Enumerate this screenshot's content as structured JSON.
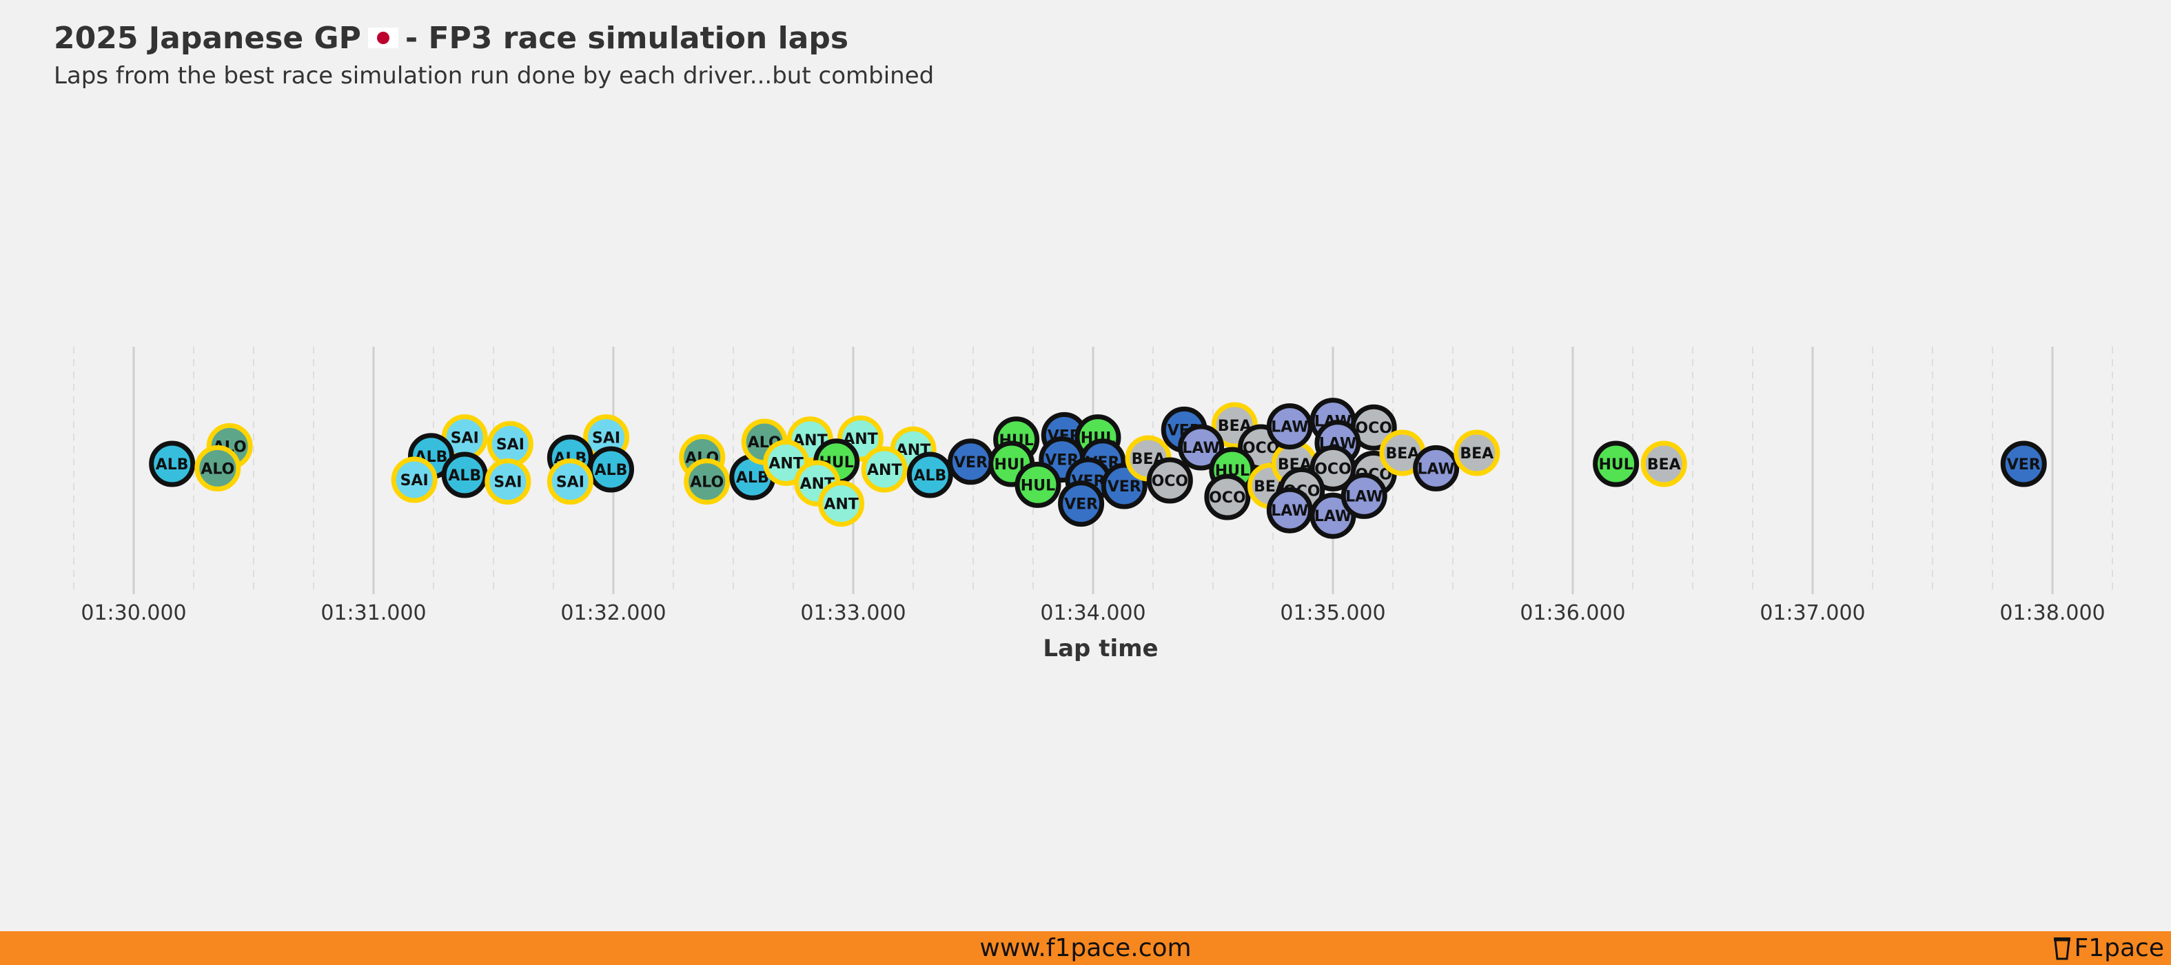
{
  "header": {
    "title_before": "2025 Japanese GP",
    "title_after": "- FP3 race simulation laps",
    "subtitle": "Laps from the best race simulation run done by each driver...but combined"
  },
  "footer": {
    "url": "www.f1pace.com",
    "brand": "F1pace"
  },
  "icons": {
    "flag": "japan-flag-icon",
    "brand_logo": "cup-logo-icon"
  },
  "colors": {
    "background": "#f1f1f1",
    "footer": "#f7871f",
    "tyre_ring_medium": "#ffd400",
    "tyre_ring_hard": "#111111",
    "flag_red": "#bc002d"
  },
  "chart_data": {
    "type": "scatter",
    "subtype": "beeswarm",
    "xlabel": "Lap time",
    "x_unit": "seconds",
    "xlim": [
      89.75,
      98.25
    ],
    "x_ticks": [
      90,
      91,
      92,
      93,
      94,
      95,
      96,
      97,
      98
    ],
    "x_tick_labels": [
      "01:30.000",
      "01:31.000",
      "01:32.000",
      "01:33.000",
      "01:34.000",
      "01:35.000",
      "01:36.000",
      "01:37.000",
      "01:38.000"
    ],
    "grid": "vertical major and minor",
    "driver_colors": {
      "ALB": "#37bedd",
      "ALO": "#5da68a",
      "SAI": "#6fd8ee",
      "ANT": "#8ef0d8",
      "HUL": "#52e252",
      "VER": "#3671c6",
      "BEA": "#b6babd",
      "OCO": "#b6babd",
      "LAW": "#8e99d6"
    },
    "laps": [
      {
        "driver": "ALB",
        "time": 90.16,
        "ring": "hard",
        "offset": 0
      },
      {
        "driver": "ALO",
        "time": 90.4,
        "ring": "medium",
        "offset": -0.8
      },
      {
        "driver": "ALO",
        "time": 90.35,
        "ring": "medium",
        "offset": 0.2
      },
      {
        "driver": "SAI",
        "time": 91.38,
        "ring": "medium",
        "offset": -1.2
      },
      {
        "driver": "SAI",
        "time": 91.57,
        "ring": "medium",
        "offset": -0.9
      },
      {
        "driver": "ALB",
        "time": 91.24,
        "ring": "hard",
        "offset": -0.35
      },
      {
        "driver": "ALB",
        "time": 91.38,
        "ring": "hard",
        "offset": 0.5
      },
      {
        "driver": "SAI",
        "time": 91.17,
        "ring": "medium",
        "offset": 0.72
      },
      {
        "driver": "SAI",
        "time": 91.56,
        "ring": "medium",
        "offset": 0.8
      },
      {
        "driver": "SAI",
        "time": 91.97,
        "ring": "medium",
        "offset": -1.2
      },
      {
        "driver": "ALB",
        "time": 91.82,
        "ring": "hard",
        "offset": -0.28
      },
      {
        "driver": "ALB",
        "time": 91.99,
        "ring": "hard",
        "offset": 0.25
      },
      {
        "driver": "SAI",
        "time": 91.82,
        "ring": "medium",
        "offset": 0.8
      },
      {
        "driver": "ALO",
        "time": 92.37,
        "ring": "medium",
        "offset": -0.3
      },
      {
        "driver": "ALO",
        "time": 92.39,
        "ring": "medium",
        "offset": 0.8
      },
      {
        "driver": "ALB",
        "time": 92.58,
        "ring": "hard",
        "offset": 0.6
      },
      {
        "driver": "ALO",
        "time": 92.63,
        "ring": "medium",
        "offset": -1.0
      },
      {
        "driver": "ANT",
        "time": 92.82,
        "ring": "medium",
        "offset": -1.1
      },
      {
        "driver": "ANT",
        "time": 93.03,
        "ring": "medium",
        "offset": -1.15
      },
      {
        "driver": "ANT",
        "time": 92.72,
        "ring": "medium",
        "offset": -0.05
      },
      {
        "driver": "HUL",
        "time": 92.93,
        "ring": "hard",
        "offset": -0.1
      },
      {
        "driver": "ANT",
        "time": 93.25,
        "ring": "medium",
        "offset": -0.65
      },
      {
        "driver": "ANT",
        "time": 93.13,
        "ring": "medium",
        "offset": 0.25
      },
      {
        "driver": "ANT",
        "time": 92.85,
        "ring": "medium",
        "offset": 0.88
      },
      {
        "driver": "ANT",
        "time": 92.95,
        "ring": "medium",
        "offset": 1.8
      },
      {
        "driver": "ALB",
        "time": 93.32,
        "ring": "hard",
        "offset": 0.5
      },
      {
        "driver": "VER",
        "time": 93.49,
        "ring": "hard",
        "offset": -0.1
      },
      {
        "driver": "HUL",
        "time": 93.68,
        "ring": "hard",
        "offset": -1.1
      },
      {
        "driver": "VER",
        "time": 93.88,
        "ring": "hard",
        "offset": -1.3
      },
      {
        "driver": "HUL",
        "time": 94.02,
        "ring": "hard",
        "offset": -1.2
      },
      {
        "driver": "HUL",
        "time": 93.66,
        "ring": "hard",
        "offset": 0
      },
      {
        "driver": "VER",
        "time": 93.87,
        "ring": "hard",
        "offset": -0.2
      },
      {
        "driver": "VER",
        "time": 94.04,
        "ring": "hard",
        "offset": -0.1
      },
      {
        "driver": "VER",
        "time": 93.98,
        "ring": "hard",
        "offset": 0.75
      },
      {
        "driver": "HUL",
        "time": 93.77,
        "ring": "hard",
        "offset": 0.95
      },
      {
        "driver": "VER",
        "time": 94.13,
        "ring": "hard",
        "offset": 1.0
      },
      {
        "driver": "VER",
        "time": 93.95,
        "ring": "hard",
        "offset": 1.8
      },
      {
        "driver": "BEA",
        "time": 94.23,
        "ring": "medium",
        "offset": -0.25
      },
      {
        "driver": "VER",
        "time": 94.38,
        "ring": "hard",
        "offset": -1.55
      },
      {
        "driver": "BEA",
        "time": 94.59,
        "ring": "medium",
        "offset": -1.75
      },
      {
        "driver": "LAW",
        "time": 94.45,
        "ring": "hard",
        "offset": -0.75
      },
      {
        "driver": "OCO",
        "time": 94.7,
        "ring": "hard",
        "offset": -0.75
      },
      {
        "driver": "OCO",
        "time": 94.32,
        "ring": "hard",
        "offset": 0.75
      },
      {
        "driver": "HUL",
        "time": 94.58,
        "ring": "hard",
        "offset": 0.28
      },
      {
        "driver": "OCO",
        "time": 94.56,
        "ring": "hard",
        "offset": 1.5
      },
      {
        "driver": "BEA",
        "time": 94.74,
        "ring": "medium",
        "offset": 1.0
      },
      {
        "driver": "BEA",
        "time": 94.84,
        "ring": "medium",
        "offset": 0
      },
      {
        "driver": "LAW",
        "time": 94.82,
        "ring": "hard",
        "offset": -1.7
      },
      {
        "driver": "LAW",
        "time": 95.0,
        "ring": "hard",
        "offset": -1.95
      },
      {
        "driver": "OCO",
        "time": 95.17,
        "ring": "hard",
        "offset": -1.65
      },
      {
        "driver": "LAW",
        "time": 95.02,
        "ring": "hard",
        "offset": -0.95
      },
      {
        "driver": "OCO",
        "time": 95.0,
        "ring": "hard",
        "offset": 0.2
      },
      {
        "driver": "OCO",
        "time": 94.87,
        "ring": "hard",
        "offset": 1.2
      },
      {
        "driver": "OCO",
        "time": 95.17,
        "ring": "hard",
        "offset": 0.45
      },
      {
        "driver": "LAW",
        "time": 94.82,
        "ring": "hard",
        "offset": 2.1
      },
      {
        "driver": "LAW",
        "time": 95.0,
        "ring": "hard",
        "offset": 2.35
      },
      {
        "driver": "LAW",
        "time": 95.13,
        "ring": "hard",
        "offset": 1.45
      },
      {
        "driver": "BEA",
        "time": 95.29,
        "ring": "medium",
        "offset": -0.5
      },
      {
        "driver": "LAW",
        "time": 95.43,
        "ring": "hard",
        "offset": 0.2
      },
      {
        "driver": "BEA",
        "time": 95.6,
        "ring": "medium",
        "offset": -0.5
      },
      {
        "driver": "HUL",
        "time": 96.18,
        "ring": "hard",
        "offset": 0
      },
      {
        "driver": "BEA",
        "time": 96.38,
        "ring": "medium",
        "offset": 0
      },
      {
        "driver": "VER",
        "time": 97.88,
        "ring": "hard",
        "offset": 0
      }
    ]
  }
}
